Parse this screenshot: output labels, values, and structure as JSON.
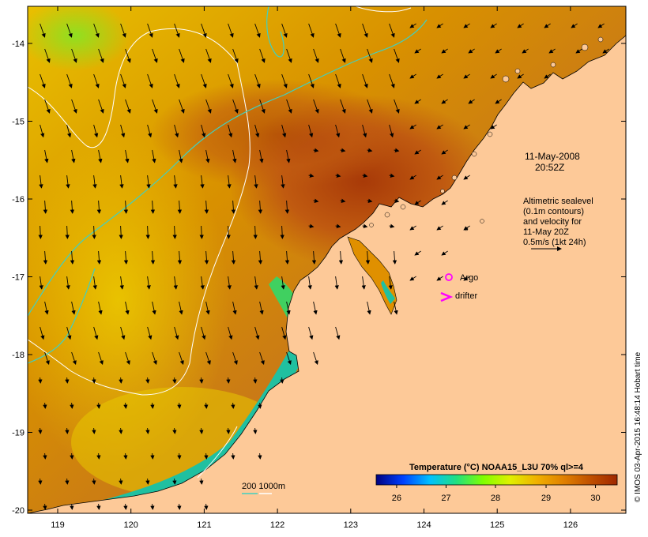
{
  "map": {
    "timestamp_date": "11-May-2008",
    "timestamp_time": "20:52Z",
    "altimetry_note": [
      "Altimetric sealevel",
      "(0.1m contours)",
      "and velocity for",
      "11-May 20Z",
      "0.5m/s (1kt 24h)"
    ],
    "legend_argo": "Argo",
    "legend_drifter": "drifter",
    "depth_contours_label": "200  1000m",
    "colorbar_title": "Temperature (°C) NOAA15_L3U 70% ql>=4",
    "colorbar_ticks": [
      "26",
      "27",
      "28",
      "29",
      "30"
    ],
    "credit": "© IMOS 03-Apr-2015 16:48:14 Hobart time",
    "lon_ticks": [
      "119",
      "120",
      "121",
      "122",
      "123",
      "124",
      "125",
      "126"
    ],
    "lat_ticks": [
      "-14",
      "-15",
      "-16",
      "-17",
      "-18",
      "-19",
      "-20"
    ],
    "colors": {
      "land": "#fdc998",
      "argo": "#ff00ff",
      "drifter": "#ff00ff",
      "isobath_200": "#40d0c0",
      "isobath_1000": "#ffffff",
      "colorbar": [
        "#000080",
        "#0040ff",
        "#00c0ff",
        "#20e080",
        "#80ff00",
        "#e0f000",
        "#f0b000",
        "#e08000",
        "#c05000",
        "#a02800"
      ]
    }
  }
}
